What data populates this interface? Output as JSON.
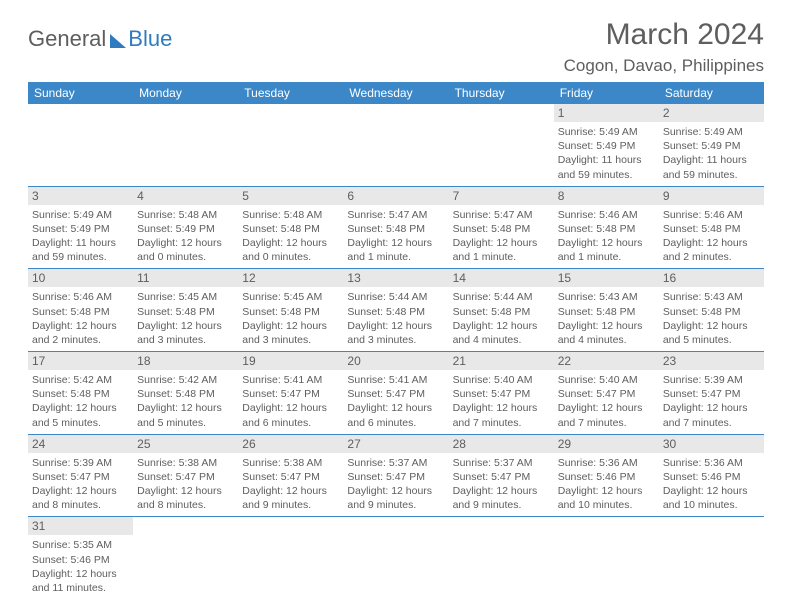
{
  "brand": {
    "general": "General",
    "blue": "Blue"
  },
  "header": {
    "title": "March 2024",
    "location": "Cogon, Davao, Philippines"
  },
  "colors": {
    "header_bg": "#3b87c8",
    "text": "#5e5e5e",
    "daynum_bg": "#e8e8e8",
    "rule": "#3b87c8"
  },
  "dow": [
    "Sunday",
    "Monday",
    "Tuesday",
    "Wednesday",
    "Thursday",
    "Friday",
    "Saturday"
  ],
  "grid": [
    [
      null,
      null,
      null,
      null,
      null,
      {
        "n": "1",
        "sr": "Sunrise: 5:49 AM",
        "ss": "Sunset: 5:49 PM",
        "dl": "Daylight: 11 hours and 59 minutes."
      },
      {
        "n": "2",
        "sr": "Sunrise: 5:49 AM",
        "ss": "Sunset: 5:49 PM",
        "dl": "Daylight: 11 hours and 59 minutes."
      }
    ],
    [
      {
        "n": "3",
        "sr": "Sunrise: 5:49 AM",
        "ss": "Sunset: 5:49 PM",
        "dl": "Daylight: 11 hours and 59 minutes."
      },
      {
        "n": "4",
        "sr": "Sunrise: 5:48 AM",
        "ss": "Sunset: 5:49 PM",
        "dl": "Daylight: 12 hours and 0 minutes."
      },
      {
        "n": "5",
        "sr": "Sunrise: 5:48 AM",
        "ss": "Sunset: 5:48 PM",
        "dl": "Daylight: 12 hours and 0 minutes."
      },
      {
        "n": "6",
        "sr": "Sunrise: 5:47 AM",
        "ss": "Sunset: 5:48 PM",
        "dl": "Daylight: 12 hours and 1 minute."
      },
      {
        "n": "7",
        "sr": "Sunrise: 5:47 AM",
        "ss": "Sunset: 5:48 PM",
        "dl": "Daylight: 12 hours and 1 minute."
      },
      {
        "n": "8",
        "sr": "Sunrise: 5:46 AM",
        "ss": "Sunset: 5:48 PM",
        "dl": "Daylight: 12 hours and 1 minute."
      },
      {
        "n": "9",
        "sr": "Sunrise: 5:46 AM",
        "ss": "Sunset: 5:48 PM",
        "dl": "Daylight: 12 hours and 2 minutes."
      }
    ],
    [
      {
        "n": "10",
        "sr": "Sunrise: 5:46 AM",
        "ss": "Sunset: 5:48 PM",
        "dl": "Daylight: 12 hours and 2 minutes."
      },
      {
        "n": "11",
        "sr": "Sunrise: 5:45 AM",
        "ss": "Sunset: 5:48 PM",
        "dl": "Daylight: 12 hours and 3 minutes."
      },
      {
        "n": "12",
        "sr": "Sunrise: 5:45 AM",
        "ss": "Sunset: 5:48 PM",
        "dl": "Daylight: 12 hours and 3 minutes."
      },
      {
        "n": "13",
        "sr": "Sunrise: 5:44 AM",
        "ss": "Sunset: 5:48 PM",
        "dl": "Daylight: 12 hours and 3 minutes."
      },
      {
        "n": "14",
        "sr": "Sunrise: 5:44 AM",
        "ss": "Sunset: 5:48 PM",
        "dl": "Daylight: 12 hours and 4 minutes."
      },
      {
        "n": "15",
        "sr": "Sunrise: 5:43 AM",
        "ss": "Sunset: 5:48 PM",
        "dl": "Daylight: 12 hours and 4 minutes."
      },
      {
        "n": "16",
        "sr": "Sunrise: 5:43 AM",
        "ss": "Sunset: 5:48 PM",
        "dl": "Daylight: 12 hours and 5 minutes."
      }
    ],
    [
      {
        "n": "17",
        "sr": "Sunrise: 5:42 AM",
        "ss": "Sunset: 5:48 PM",
        "dl": "Daylight: 12 hours and 5 minutes."
      },
      {
        "n": "18",
        "sr": "Sunrise: 5:42 AM",
        "ss": "Sunset: 5:48 PM",
        "dl": "Daylight: 12 hours and 5 minutes."
      },
      {
        "n": "19",
        "sr": "Sunrise: 5:41 AM",
        "ss": "Sunset: 5:47 PM",
        "dl": "Daylight: 12 hours and 6 minutes."
      },
      {
        "n": "20",
        "sr": "Sunrise: 5:41 AM",
        "ss": "Sunset: 5:47 PM",
        "dl": "Daylight: 12 hours and 6 minutes."
      },
      {
        "n": "21",
        "sr": "Sunrise: 5:40 AM",
        "ss": "Sunset: 5:47 PM",
        "dl": "Daylight: 12 hours and 7 minutes."
      },
      {
        "n": "22",
        "sr": "Sunrise: 5:40 AM",
        "ss": "Sunset: 5:47 PM",
        "dl": "Daylight: 12 hours and 7 minutes."
      },
      {
        "n": "23",
        "sr": "Sunrise: 5:39 AM",
        "ss": "Sunset: 5:47 PM",
        "dl": "Daylight: 12 hours and 7 minutes."
      }
    ],
    [
      {
        "n": "24",
        "sr": "Sunrise: 5:39 AM",
        "ss": "Sunset: 5:47 PM",
        "dl": "Daylight: 12 hours and 8 minutes."
      },
      {
        "n": "25",
        "sr": "Sunrise: 5:38 AM",
        "ss": "Sunset: 5:47 PM",
        "dl": "Daylight: 12 hours and 8 minutes."
      },
      {
        "n": "26",
        "sr": "Sunrise: 5:38 AM",
        "ss": "Sunset: 5:47 PM",
        "dl": "Daylight: 12 hours and 9 minutes."
      },
      {
        "n": "27",
        "sr": "Sunrise: 5:37 AM",
        "ss": "Sunset: 5:47 PM",
        "dl": "Daylight: 12 hours and 9 minutes."
      },
      {
        "n": "28",
        "sr": "Sunrise: 5:37 AM",
        "ss": "Sunset: 5:47 PM",
        "dl": "Daylight: 12 hours and 9 minutes."
      },
      {
        "n": "29",
        "sr": "Sunrise: 5:36 AM",
        "ss": "Sunset: 5:46 PM",
        "dl": "Daylight: 12 hours and 10 minutes."
      },
      {
        "n": "30",
        "sr": "Sunrise: 5:36 AM",
        "ss": "Sunset: 5:46 PM",
        "dl": "Daylight: 12 hours and 10 minutes."
      }
    ],
    [
      {
        "n": "31",
        "sr": "Sunrise: 5:35 AM",
        "ss": "Sunset: 5:46 PM",
        "dl": "Daylight: 12 hours and 11 minutes."
      },
      null,
      null,
      null,
      null,
      null,
      null
    ]
  ]
}
